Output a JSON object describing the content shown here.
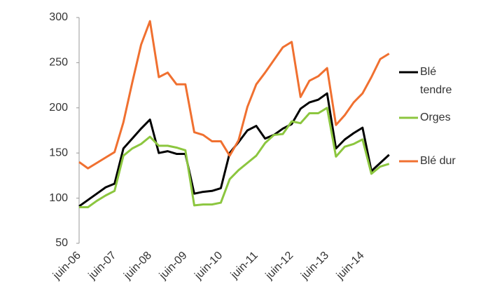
{
  "chart_data": {
    "type": "line",
    "categories": [
      "juin-06",
      null,
      null,
      null,
      "juin-07",
      null,
      null,
      null,
      "juin-08",
      null,
      null,
      null,
      "juin-09",
      null,
      null,
      null,
      "juin-10",
      null,
      null,
      null,
      "juin-11",
      null,
      null,
      null,
      "juin-12",
      null,
      null,
      null,
      "juin-13",
      null,
      null,
      null,
      "juin-14",
      null,
      null,
      null
    ],
    "series": [
      {
        "name": "Blé tendre",
        "color": "#000000",
        "values": [
          91,
          98,
          105,
          112,
          116,
          155,
          166,
          177,
          187,
          150,
          152,
          149,
          149,
          105,
          107,
          108,
          111,
          150,
          162,
          175,
          180,
          166,
          170,
          177,
          182,
          199,
          206,
          209,
          216,
          155,
          165,
          172,
          178,
          130,
          139,
          148
        ]
      },
      {
        "name": "Orges",
        "color": "#8cc63f",
        "values": [
          90,
          90,
          97,
          103,
          108,
          147,
          155,
          160,
          168,
          158,
          158,
          156,
          153,
          92,
          93,
          93,
          95,
          121,
          131,
          139,
          147,
          161,
          170,
          171,
          185,
          183,
          194,
          194,
          200,
          146,
          157,
          160,
          165,
          127,
          135,
          138
        ]
      },
      {
        "name": "Blé dur",
        "color": "#f07030",
        "values": [
          140,
          133,
          139,
          145,
          151,
          184,
          228,
          270,
          296,
          234,
          239,
          226,
          226,
          173,
          170,
          163,
          163,
          147,
          164,
          201,
          226,
          239,
          253,
          267,
          273,
          212,
          230,
          235,
          244,
          181,
          192,
          206,
          216,
          234,
          254,
          260
        ]
      }
    ],
    "ylim": [
      50,
      300
    ],
    "yticks": [
      50,
      100,
      150,
      200,
      250,
      300
    ],
    "grid": false,
    "legend": "right"
  }
}
